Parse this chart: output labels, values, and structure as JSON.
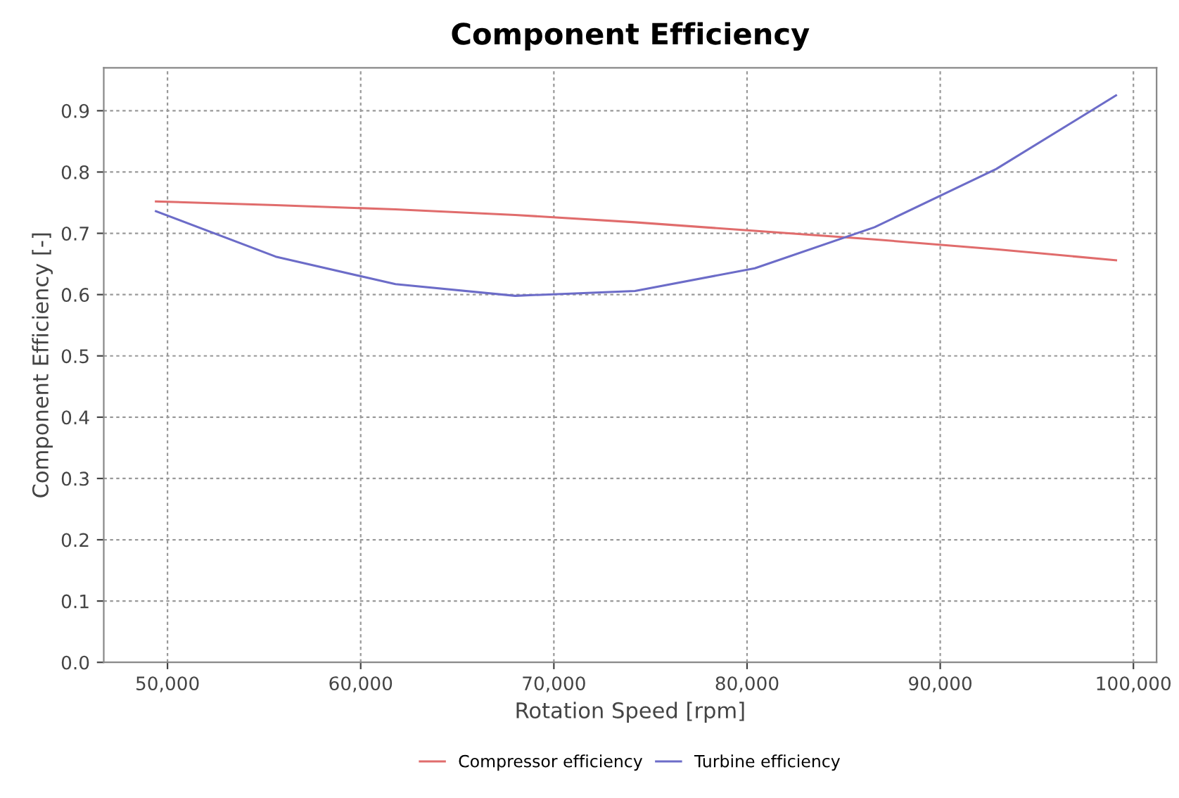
{
  "chart_data": {
    "type": "line",
    "title": "Component Efficiency",
    "xlabel": "Rotation Speed [rpm]",
    "ylabel": "Component Efficiency [-]",
    "x": [
      49400,
      55600,
      61800,
      68000,
      74200,
      80400,
      86600,
      92900,
      99100
    ],
    "series": [
      {
        "name": "Compressor efficiency",
        "color": "#e06c6c",
        "values": [
          0.752,
          0.746,
          0.739,
          0.73,
          0.718,
          0.704,
          0.69,
          0.674,
          0.656
        ]
      },
      {
        "name": "Turbine efficiency",
        "color": "#6c6cc8",
        "values": [
          0.736,
          0.662,
          0.617,
          0.598,
          0.606,
          0.643,
          0.71,
          0.805,
          0.925
        ]
      }
    ],
    "xlim": [
      46700,
      101200
    ],
    "ylim": [
      0,
      0.97
    ],
    "xticks": [
      {
        "value": 50000,
        "label": "50,000"
      },
      {
        "value": 60000,
        "label": "60,000"
      },
      {
        "value": 70000,
        "label": "70,000"
      },
      {
        "value": 80000,
        "label": "80,000"
      },
      {
        "value": 90000,
        "label": "90,000"
      },
      {
        "value": 100000,
        "label": "100,000"
      }
    ],
    "yticks": [
      {
        "value": 0,
        "label": "0.0"
      },
      0.1,
      0.2,
      0.3,
      0.4,
      0.5,
      0.6,
      0.7,
      0.8,
      0.9
    ],
    "grid": true,
    "legend": "bottom",
    "marker": "none",
    "line_style": "solid"
  }
}
